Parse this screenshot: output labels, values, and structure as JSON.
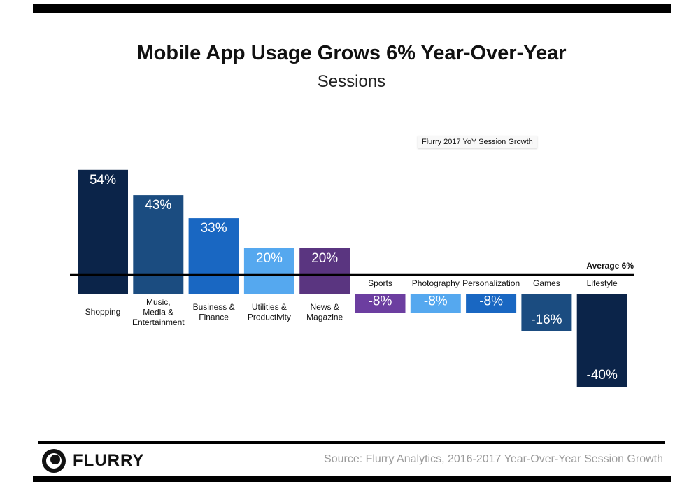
{
  "header": {
    "title": "Mobile App Usage Grows 6% Year-Over-Year",
    "subtitle": "Sessions"
  },
  "tooltip": "Flurry 2017 YoY Session Growth",
  "average_label": "Average 6%",
  "footer": {
    "brand": "FLURRY",
    "source": "Source: Flurry Analytics, 2016-2017 Year-Over-Year Session Growth"
  },
  "chart_data": {
    "type": "bar",
    "title": "Mobile App Usage Grows 6% Year-Over-Year",
    "subtitle": "Sessions",
    "baseline_label": "Average 6%",
    "categories": [
      {
        "label": [
          "Shopping"
        ],
        "value": 54,
        "value_label": "54%",
        "color": "#0b2449"
      },
      {
        "label": [
          "Music,",
          "Media &",
          "Entertainment"
        ],
        "value": 43,
        "value_label": "43%",
        "color": "#1b4c80"
      },
      {
        "label": [
          "Business &",
          "Finance"
        ],
        "value": 33,
        "value_label": "33%",
        "color": "#1967c2"
      },
      {
        "label": [
          "Utilities &",
          "Productivity"
        ],
        "value": 20,
        "value_label": "20%",
        "color": "#55a8ef"
      },
      {
        "label": [
          "News &",
          "Magazine"
        ],
        "value": 20,
        "value_label": "20%",
        "color": "#5a3580"
      },
      {
        "label": [
          "Sports"
        ],
        "value": -8,
        "value_label": "-8%",
        "color": "#6c3ea0"
      },
      {
        "label": [
          "Photography"
        ],
        "value": -8,
        "value_label": "-8%",
        "color": "#55a8ef"
      },
      {
        "label": [
          "Personalization"
        ],
        "value": -8,
        "value_label": "-8%",
        "color": "#1967c2"
      },
      {
        "label": [
          "Games"
        ],
        "value": -16,
        "value_label": "-16%",
        "color": "#1b4c80"
      },
      {
        "label": [
          "Lifestyle"
        ],
        "value": -40,
        "value_label": "-40%",
        "color": "#0b2449"
      }
    ],
    "ylim": [
      -40,
      54
    ],
    "legend": "none",
    "grid": false
  }
}
